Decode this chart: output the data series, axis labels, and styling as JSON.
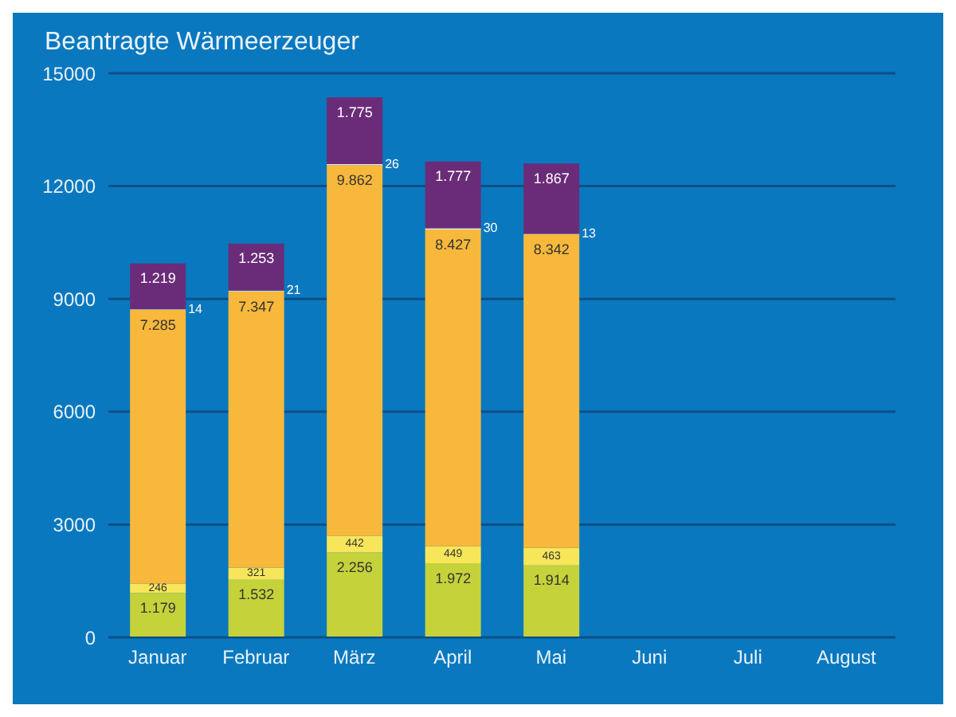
{
  "chart_data": {
    "type": "bar",
    "title": "Beantragte Wärmeerzeuger",
    "stacked": true,
    "categories": [
      "Januar",
      "Februar",
      "März",
      "April",
      "Mai",
      "Juni",
      "Juli",
      "August"
    ],
    "series": [
      {
        "color": "#c5d23a",
        "values": [
          1179,
          1532,
          2256,
          1972,
          1914,
          null,
          null,
          null
        ],
        "value_labels": [
          "1.179",
          "1.532",
          "2.256",
          "1.972",
          "1.914",
          null,
          null,
          null
        ]
      },
      {
        "color": "#f7e65a",
        "values": [
          246,
          321,
          442,
          449,
          463,
          null,
          null,
          null
        ],
        "value_labels": [
          "246",
          "321",
          "442",
          "449",
          "463",
          null,
          null,
          null
        ]
      },
      {
        "color": "#f8b83c",
        "values": [
          7285,
          7347,
          9862,
          8427,
          8342,
          null,
          null,
          null
        ],
        "value_labels": [
          "7.285",
          "7.347",
          "9.862",
          "8.427",
          "8.342",
          null,
          null,
          null
        ]
      },
      {
        "color": "#e8e8e8",
        "values": [
          14,
          21,
          26,
          30,
          13,
          null,
          null,
          null
        ],
        "value_labels": [
          "14",
          "21",
          "26",
          "30",
          "13",
          null,
          null,
          null
        ]
      },
      {
        "color": "#6a2c78",
        "values": [
          1219,
          1253,
          1775,
          1777,
          1867,
          null,
          null,
          null
        ],
        "value_labels": [
          "1.219",
          "1.253",
          "1.775",
          "1.777",
          "1.867",
          null,
          null,
          null
        ]
      }
    ],
    "ylim": [
      0,
      15000
    ],
    "yticks": [
      0,
      3000,
      6000,
      9000,
      12000,
      15000
    ],
    "grid": "y"
  }
}
